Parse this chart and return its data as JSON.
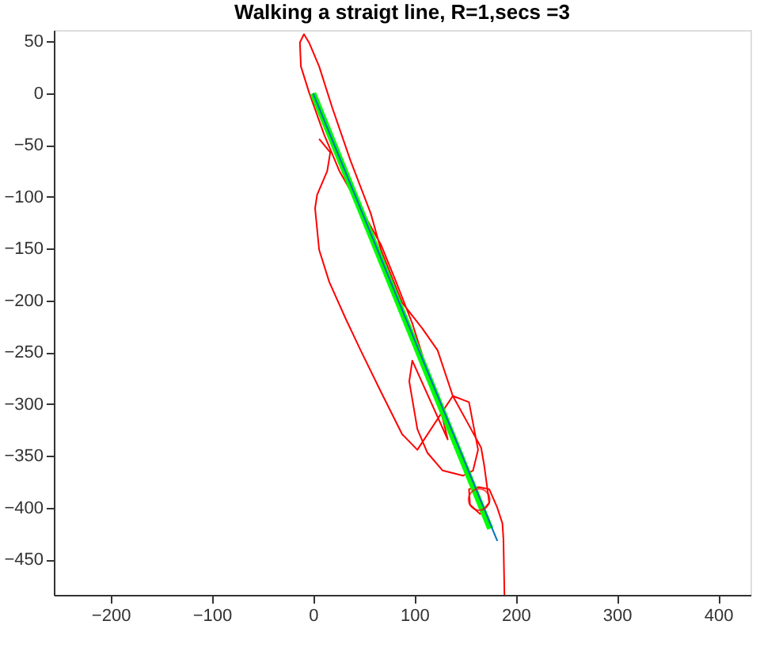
{
  "chart_data": {
    "type": "line",
    "title": "Walking a straigt line, R=1,secs =3",
    "xlim": [
      -256,
      432
    ],
    "ylim": [
      -484,
      61
    ],
    "xticks": [
      -200,
      -100,
      0,
      100,
      200,
      300,
      400
    ],
    "yticks": [
      -450,
      -400,
      -350,
      -300,
      -250,
      -200,
      -150,
      -100,
      -50,
      0,
      50
    ],
    "grid": false,
    "line_style": "solid",
    "series": [
      {
        "color": "#ff0000",
        "marker": "none",
        "x": [
          189,
          188,
          187,
          182,
          174,
          164,
          154,
          155,
          165,
          174,
          169,
          166,
          156,
          138,
          123,
          108,
          88,
          67,
          57,
          37,
          19,
          6,
          -4,
          -9,
          -13,
          -12,
          -4,
          11,
          26,
          47,
          67,
          82,
          98,
          108,
          113,
          123,
          133,
          98,
          95,
          103,
          113,
          128,
          148,
          158,
          163,
          154,
          138,
          103,
          88,
          67,
          47,
          32,
          16,
          6,
          2,
          4,
          14,
          17,
          6
        ],
        "values": [
          -484,
          -430,
          -415,
          -400,
          -382,
          -380,
          -382,
          -397,
          -406,
          -395,
          -359,
          -342,
          -324,
          -292,
          -248,
          -227,
          -202,
          -151,
          -116,
          -65,
          -14,
          26,
          49,
          57,
          49,
          26,
          1,
          -40,
          -75,
          -111,
          -146,
          -182,
          -222,
          -253,
          -273,
          -293,
          -334,
          -258,
          -278,
          -324,
          -347,
          -364,
          -369,
          -364,
          -344,
          -298,
          -292,
          -344,
          -329,
          -288,
          -248,
          -217,
          -182,
          -151,
          -111,
          -98,
          -75,
          -57,
          -44
        ]
      },
      {
        "color": "#00ff00",
        "marker": "none",
        "x": [
          0,
          175
        ],
        "values": [
          0,
          -420
        ]
      },
      {
        "color": "#0072bd",
        "marker": "none",
        "x": [
          0,
          182
        ],
        "values": [
          0,
          -432
        ]
      },
      {
        "type": "scatter",
        "color": "#ff0000",
        "marker": "circle",
        "x": [
          164
        ],
        "values": [
          -392
        ]
      }
    ]
  }
}
